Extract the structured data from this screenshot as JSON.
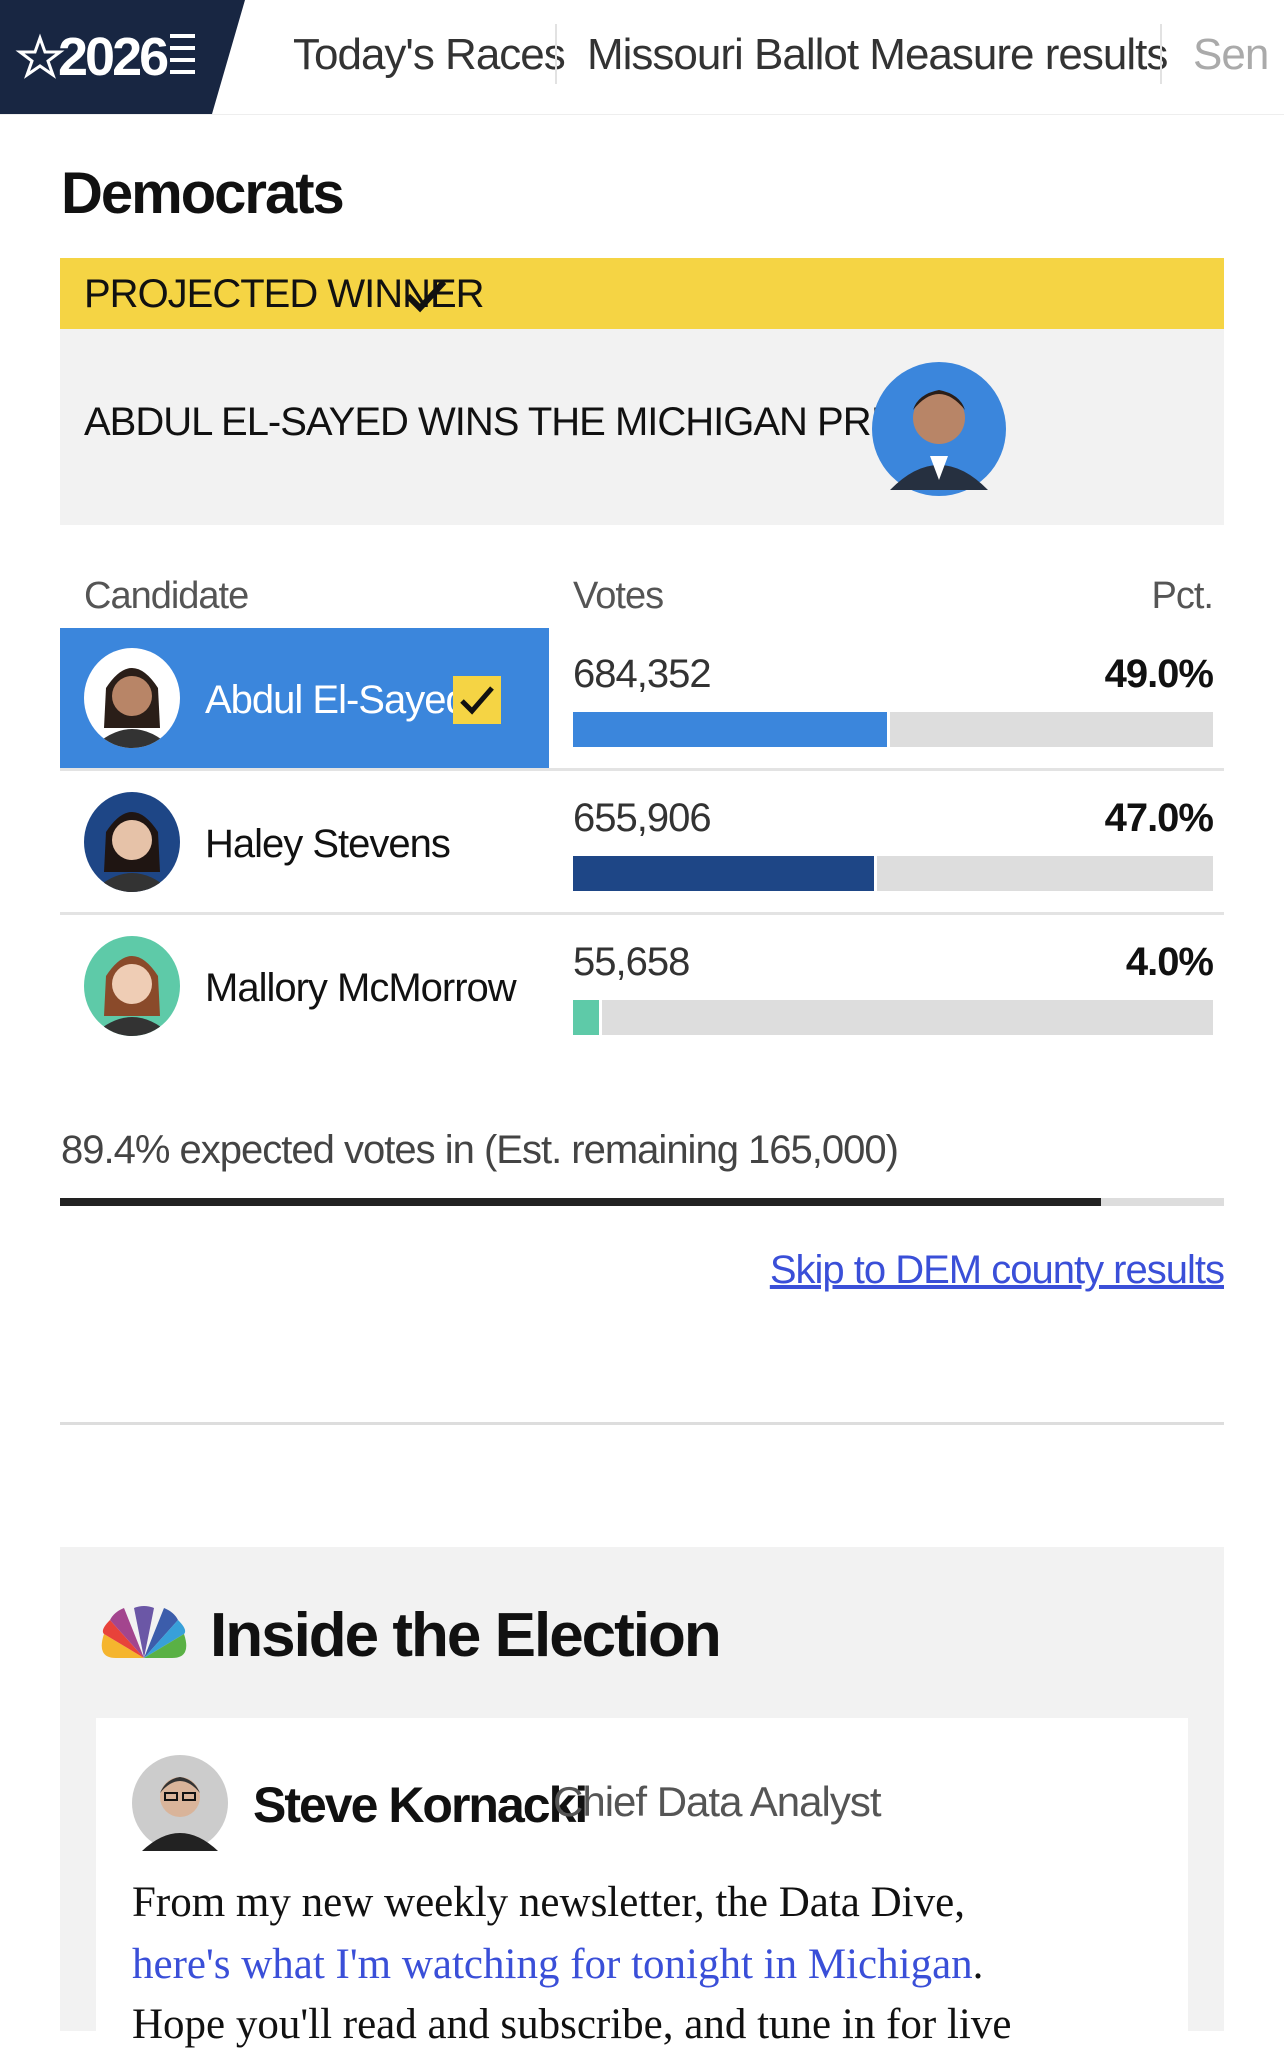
{
  "nav": {
    "logo": "2026",
    "items": [
      "Today's Races",
      "Missouri Ballot Measure results",
      "Sen"
    ]
  },
  "section_title": "Democrats",
  "banner": {
    "label": "PROJECTED WINNER",
    "headline": "ABDUL EL-SAYED WINS THE MICHIGAN PRIMARY"
  },
  "table": {
    "headers": [
      "Candidate",
      "Votes",
      "Pct."
    ],
    "rows": [
      {
        "name": "Abdul El-Sayed",
        "votes": "684,352",
        "pct": 49.0,
        "pct_label": "49.0%",
        "color": "#3b86dc"
      },
      {
        "name": "Haley Stevens",
        "votes": "655,906",
        "pct": 47.0,
        "pct_label": "47.0%",
        "color": "#1e4686"
      },
      {
        "name": "Mallory McMorrow",
        "votes": "55,658",
        "pct": 4.0,
        "pct_label": "4.0%",
        "color": "#5ecaa8"
      }
    ]
  },
  "expected": {
    "text": "89.4% expected votes in (Est. remaining 165,000)",
    "pct": 89.4
  },
  "link": "Skip to DEM county results",
  "inside": {
    "title": "Inside the Election",
    "author": "Steve Kornacki",
    "role": "Chief Data Analyst",
    "lines": [
      "From my new weekly newsletter, the Data Dive,",
      "here's what I'm watching for tonight in Michigan",
      ".",
      "Hope you'll read and subscribe, and tune in for live"
    ]
  }
}
